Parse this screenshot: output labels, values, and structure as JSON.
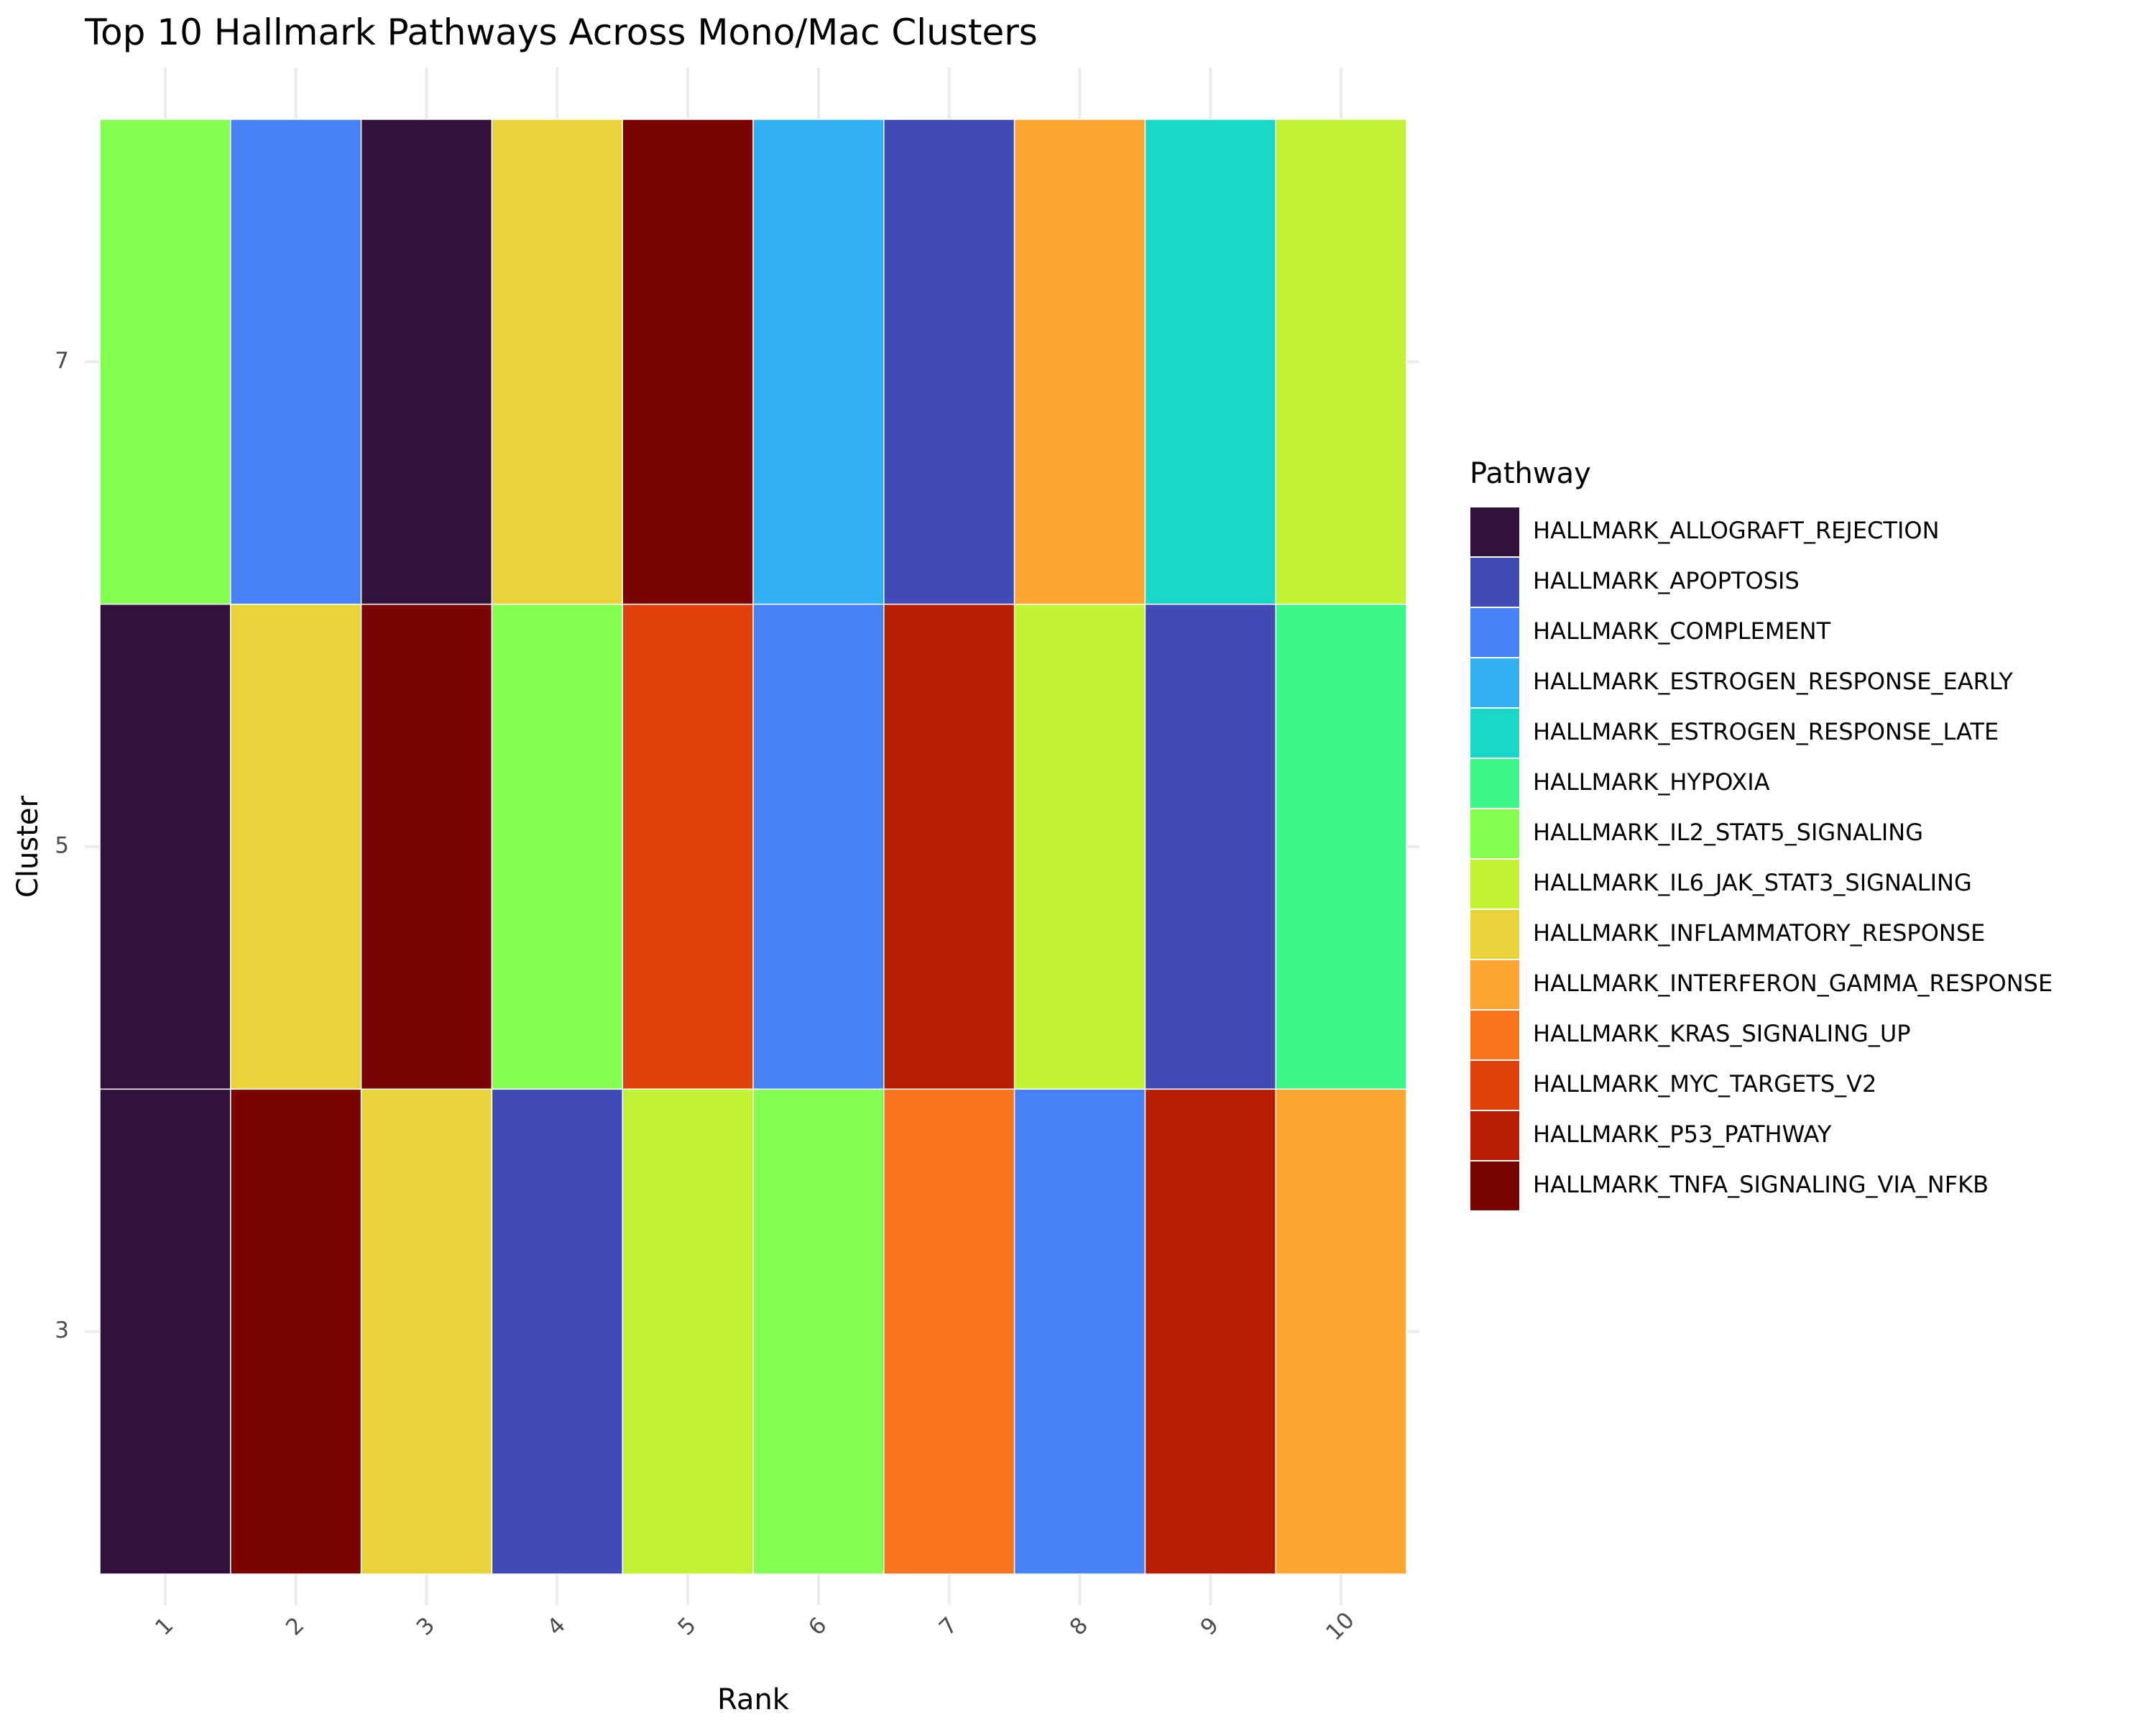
{
  "chart_data": {
    "type": "heatmap",
    "title": "Top 10 Hallmark Pathways Across Mono/Mac Clusters",
    "xlabel": "Rank",
    "ylabel": "Cluster",
    "x_categories": [
      "1",
      "2",
      "3",
      "4",
      "5",
      "6",
      "7",
      "8",
      "9",
      "10"
    ],
    "y_categories": [
      "7",
      "5",
      "3"
    ],
    "legend": {
      "title": "Pathway",
      "placement": "right",
      "entries": [
        {
          "name": "HALLMARK_ALLOGRAFT_REJECTION",
          "color": "#30123b"
        },
        {
          "name": "HALLMARK_APOPTOSIS",
          "color": "#424bb5"
        },
        {
          "name": "HALLMARK_COMPLEMENT",
          "color": "#4681f7"
        },
        {
          "name": "HALLMARK_ESTROGEN_RESPONSE_EARLY",
          "color": "#30aff4"
        },
        {
          "name": "HALLMARK_ESTROGEN_RESPONSE_LATE",
          "color": "#1ad8c6"
        },
        {
          "name": "HALLMARK_HYPOXIA",
          "color": "#3ef58a"
        },
        {
          "name": "HALLMARK_IL2_STAT5_SIGNALING",
          "color": "#83ff52"
        },
        {
          "name": "HALLMARK_IL6_JAK_STAT3_SIGNALING",
          "color": "#c1f334"
        },
        {
          "name": "HALLMARK_INFLAMMATORY_RESPONSE",
          "color": "#e8d43a"
        },
        {
          "name": "HALLMARK_INTERFERON_GAMMA_RESPONSE",
          "color": "#fea632"
        },
        {
          "name": "HALLMARK_KRAS_SIGNALING_UP",
          "color": "#f7731e"
        },
        {
          "name": "HALLMARK_MYC_TARGETS_V2",
          "color": "#e1400a"
        },
        {
          "name": "HALLMARK_P53_PATHWAY",
          "color": "#b71d03"
        },
        {
          "name": "HALLMARK_TNFA_SIGNALING_VIA_NFKB",
          "color": "#7a0403"
        }
      ]
    },
    "cells": {
      "7": [
        "HALLMARK_IL2_STAT5_SIGNALING",
        "HALLMARK_COMPLEMENT",
        "HALLMARK_ALLOGRAFT_REJECTION",
        "HALLMARK_INFLAMMATORY_RESPONSE",
        "HALLMARK_TNFA_SIGNALING_VIA_NFKB",
        "HALLMARK_ESTROGEN_RESPONSE_EARLY",
        "HALLMARK_APOPTOSIS",
        "HALLMARK_INTERFERON_GAMMA_RESPONSE",
        "HALLMARK_ESTROGEN_RESPONSE_LATE",
        "HALLMARK_IL6_JAK_STAT3_SIGNALING"
      ],
      "5": [
        "HALLMARK_ALLOGRAFT_REJECTION",
        "HALLMARK_INFLAMMATORY_RESPONSE",
        "HALLMARK_TNFA_SIGNALING_VIA_NFKB",
        "HALLMARK_IL2_STAT5_SIGNALING",
        "HALLMARK_MYC_TARGETS_V2",
        "HALLMARK_COMPLEMENT",
        "HALLMARK_P53_PATHWAY",
        "HALLMARK_IL6_JAK_STAT3_SIGNALING",
        "HALLMARK_APOPTOSIS",
        "HALLMARK_HYPOXIA"
      ],
      "3": [
        "HALLMARK_ALLOGRAFT_REJECTION",
        "HALLMARK_TNFA_SIGNALING_VIA_NFKB",
        "HALLMARK_INFLAMMATORY_RESPONSE",
        "HALLMARK_APOPTOSIS",
        "HALLMARK_IL6_JAK_STAT3_SIGNALING",
        "HALLMARK_IL2_STAT5_SIGNALING",
        "HALLMARK_KRAS_SIGNALING_UP",
        "HALLMARK_COMPLEMENT",
        "HALLMARK_P53_PATHWAY",
        "HALLMARK_INTERFERON_GAMMA_RESPONSE"
      ]
    },
    "grid": true
  }
}
